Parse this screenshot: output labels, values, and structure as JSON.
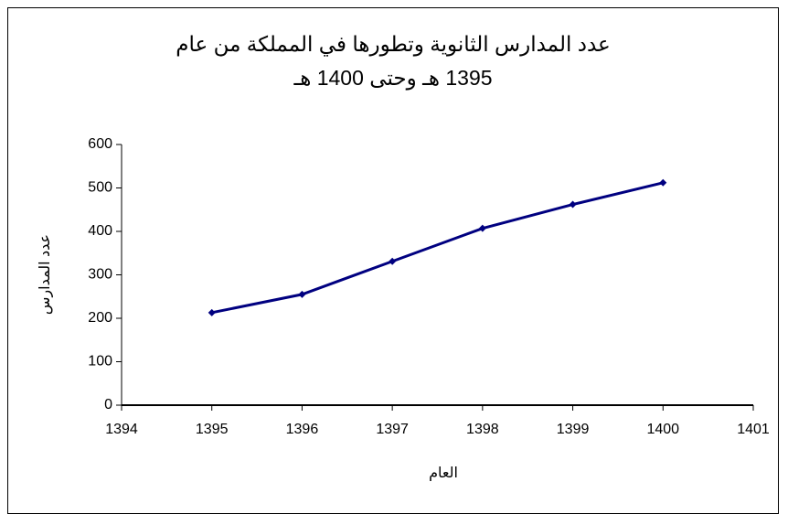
{
  "chart_data": {
    "type": "line",
    "title": "عدد المدارس الثانوية وتطورها في المملكة من عام 1395 هـ وحتى 1400 هـ",
    "x_label": "العام",
    "y_label": "عدد المدارس",
    "x": [
      1395,
      1396,
      1397,
      1398,
      1399,
      1400
    ],
    "series": [
      {
        "name": "عدد المدارس",
        "color": "#000080",
        "values": [
          213,
          255,
          331,
          407,
          462,
          512
        ]
      }
    ],
    "xlim": [
      1394,
      1401
    ],
    "xticks": [
      1394,
      1395,
      1396,
      1397,
      1398,
      1399,
      1400,
      1401
    ],
    "ylim": [
      0,
      600
    ],
    "yticks": [
      0,
      100,
      200,
      300,
      400,
      500,
      600
    ],
    "grid": false,
    "legend": false
  }
}
